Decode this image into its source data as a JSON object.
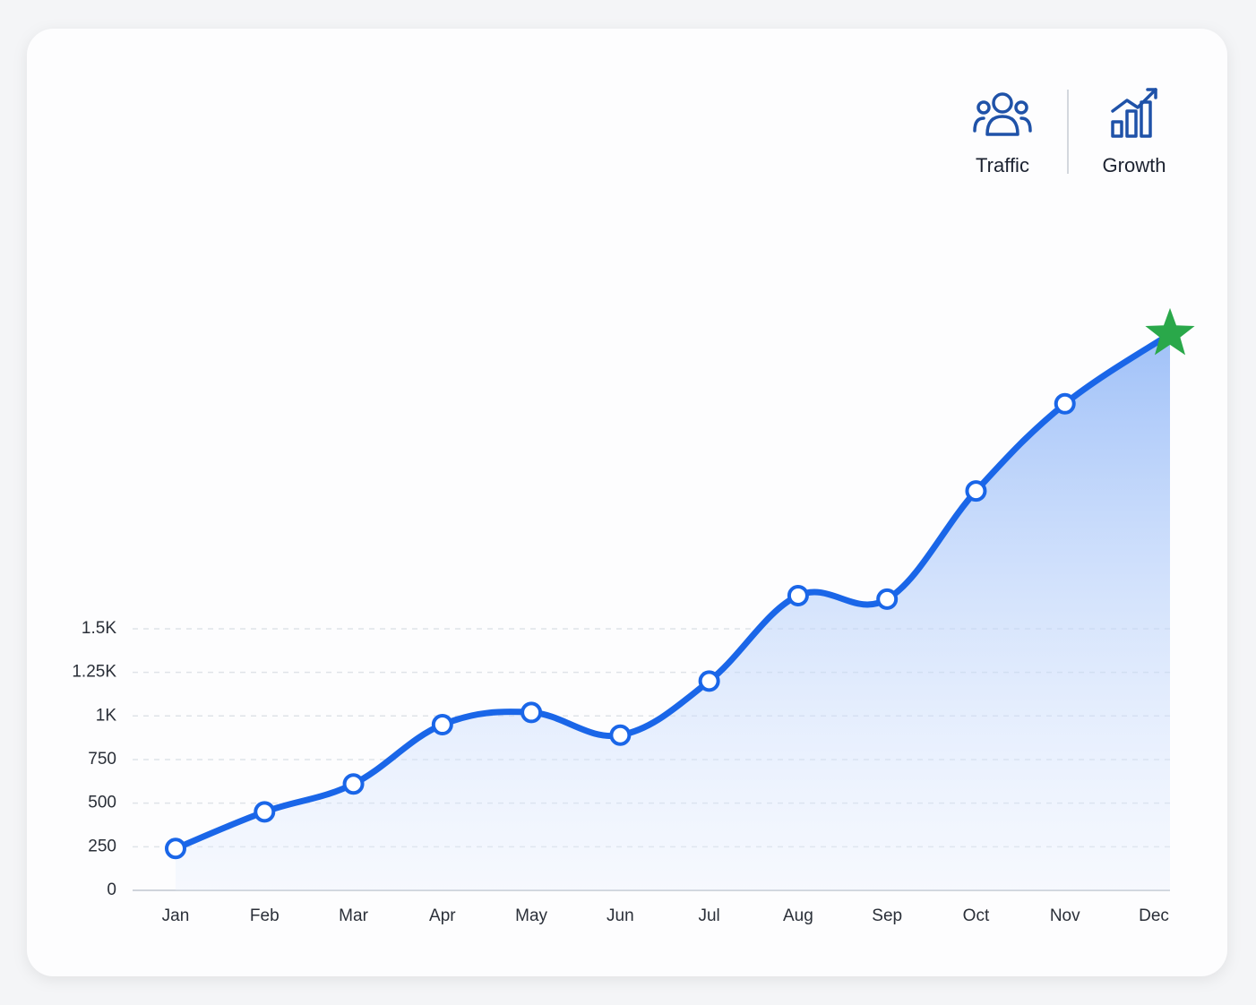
{
  "header": {
    "items": [
      "Traffic",
      "Growth"
    ]
  },
  "chart_data": {
    "type": "area-line",
    "categories": [
      "Jan",
      "Feb",
      "Mar",
      "Apr",
      "May",
      "Jun",
      "Jul",
      "Aug",
      "Sep",
      "Oct",
      "Nov",
      "Dec"
    ],
    "values": [
      240,
      450,
      610,
      950,
      1020,
      890,
      1200,
      1690,
      1670,
      2290,
      2790,
      3190
    ],
    "color": "#1a66e8",
    "highlight_color": "#2aa84a",
    "ylim": [
      0,
      3300
    ],
    "yticks": [
      0,
      250,
      500,
      750,
      {
        "value": 1000,
        "label": "1K"
      },
      {
        "value": 1250,
        "label": "1.25K"
      },
      {
        "value": 1500,
        "label": "1.5K"
      }
    ],
    "grid": true
  }
}
